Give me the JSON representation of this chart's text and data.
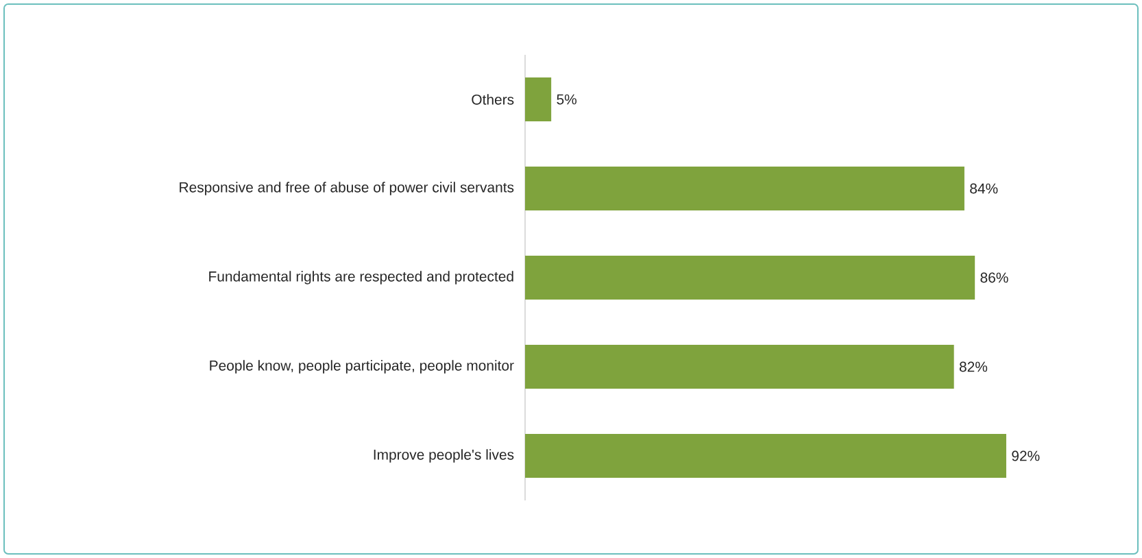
{
  "chart_data": {
    "type": "bar",
    "orientation": "horizontal",
    "categories": [
      "Others",
      "Responsive and free of abuse of power civil servants",
      "Fundamental rights are respected and protected",
      "People know, people participate, people monitor",
      "Improve people's lives"
    ],
    "values": [
      5,
      84,
      86,
      82,
      92
    ],
    "color": "#7fa33d",
    "value_labels": [
      "5%",
      "84%",
      "86%",
      "82%",
      "92%"
    ]
  }
}
